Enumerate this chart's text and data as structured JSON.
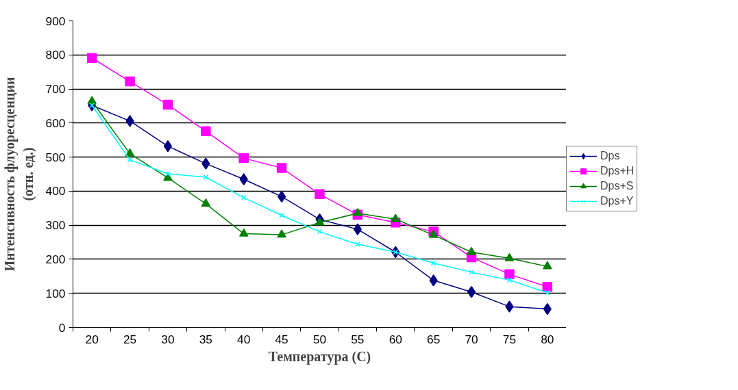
{
  "chart_data": {
    "type": "line",
    "xlabel": "Температура (С)",
    "ylabel": "Интенсивность флуоресценции (отн. ед.)",
    "categories": [
      "20",
      "25",
      "30",
      "35",
      "40",
      "45",
      "50",
      "55",
      "60",
      "65",
      "70",
      "75",
      "80"
    ],
    "ylim": [
      0,
      900
    ],
    "yticks": [
      0,
      100,
      200,
      300,
      400,
      500,
      600,
      700,
      800,
      900
    ],
    "grid": "y",
    "legend": "right",
    "series": [
      {
        "name": "Dps",
        "color": "#000080",
        "marker": "diamond",
        "values": [
          652,
          606,
          532,
          481,
          435,
          384,
          317,
          288,
          221,
          138,
          104,
          61,
          54
        ]
      },
      {
        "name": "Dps+H",
        "color": "#ff00ff",
        "marker": "square",
        "values": [
          791,
          722,
          654,
          576,
          497,
          468,
          391,
          331,
          308,
          281,
          206,
          156,
          119
        ]
      },
      {
        "name": "Dps+S",
        "color": "#008000",
        "marker": "triangle",
        "values": [
          664,
          510,
          439,
          363,
          275,
          272,
          308,
          335,
          318,
          271,
          221,
          203,
          179
        ]
      },
      {
        "name": "Dps+Y",
        "color": "#00ffff",
        "marker": "cross",
        "values": [
          652,
          492,
          451,
          441,
          381,
          329,
          281,
          244,
          221,
          189,
          162,
          139,
          102
        ]
      }
    ]
  }
}
